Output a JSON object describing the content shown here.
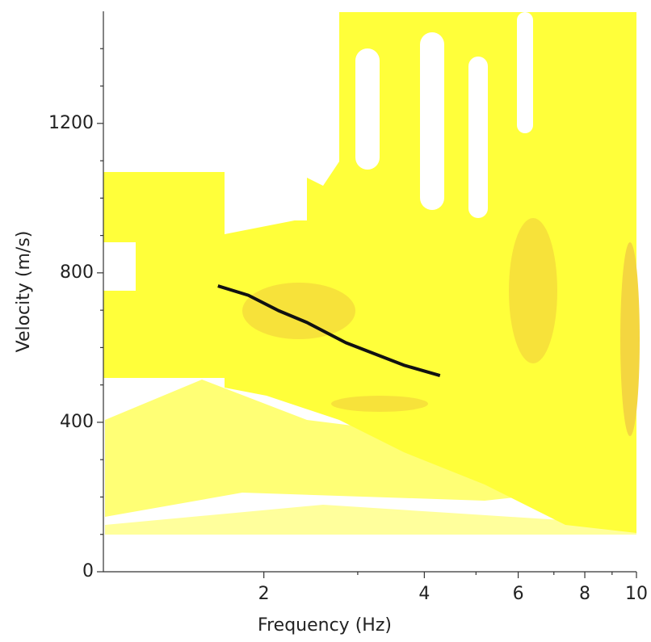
{
  "chart_data": {
    "type": "line",
    "x_label": "Frequency (Hz)",
    "y_label": "Velocity (m/s)",
    "x": [
      1.64,
      1.87,
      2.13,
      2.41,
      2.85,
      3.66,
      4.28
    ],
    "series": [
      {
        "color": "#111111",
        "values": [
          765,
          740,
          699,
          667,
          613,
          553,
          525
        ]
      }
    ],
    "x_log_scale": true,
    "xlim": [
      1,
      10
    ],
    "xticks": [
      2,
      4,
      6,
      8,
      10
    ],
    "x_minor_ticks": [
      3,
      5,
      7,
      9
    ],
    "ylim": [
      0,
      1500
    ],
    "yticks": [
      0,
      400,
      800,
      1200
    ],
    "y_minor_ticks": [
      100,
      200,
      300,
      500,
      600,
      700,
      900,
      1000,
      1100,
      1300,
      1400
    ]
  }
}
